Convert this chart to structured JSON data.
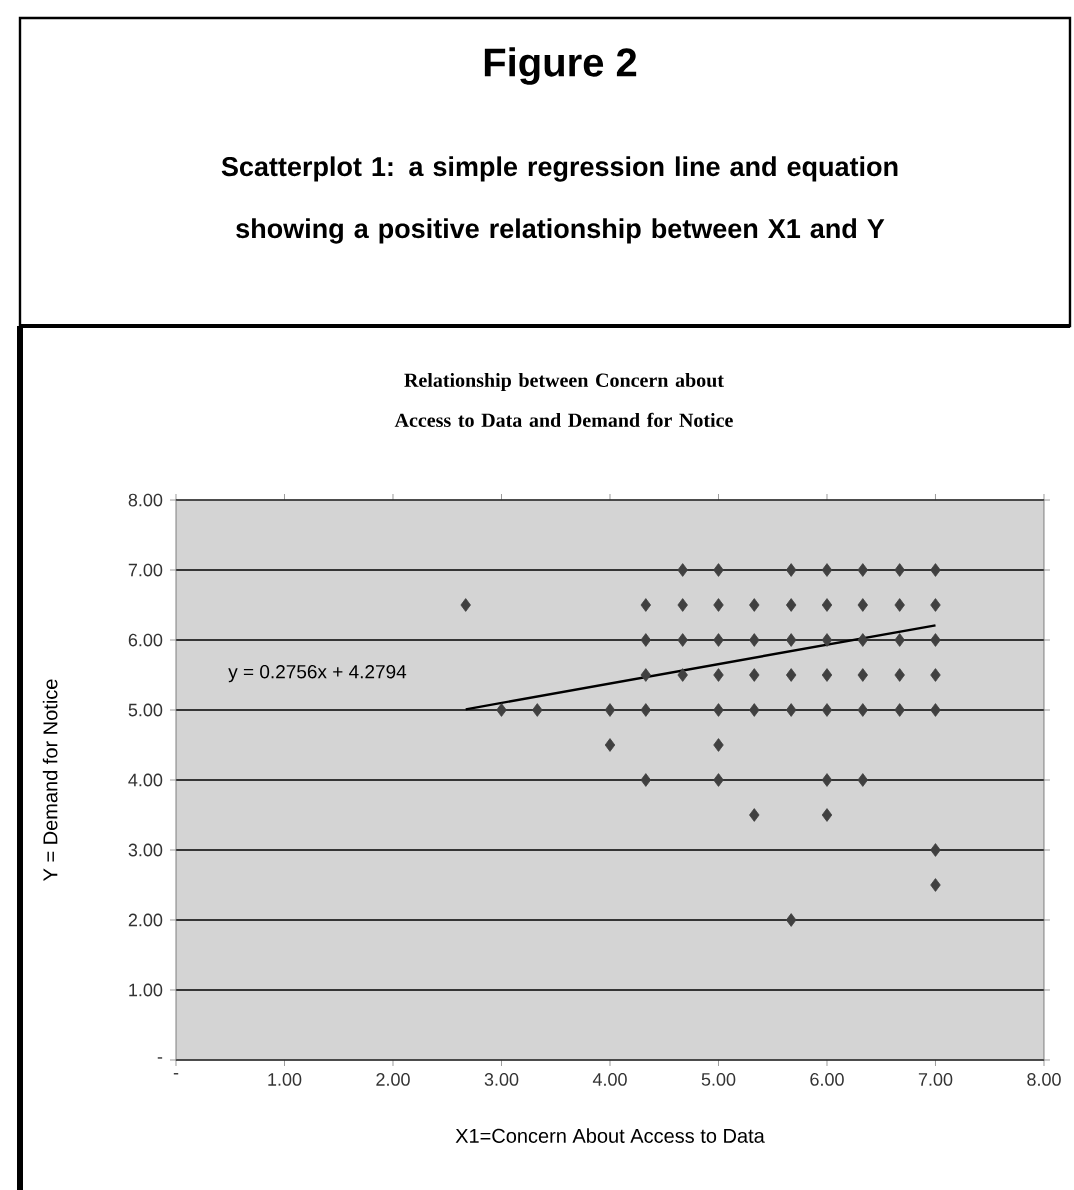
{
  "chart_data": {
    "type": "scatter",
    "title": "Relationship between Concern about Access to Data and Demand for Notice",
    "xlabel": "X1=Concern About Access to Data",
    "ylabel": "Y = Demand for Notice",
    "annotations": [
      "Figure 2",
      "Scatterplot 1: a simple regression line and equation showing a positive relationship between X1 and Y",
      "y = 0.2756x + 4.2794"
    ],
    "xlim": [
      0,
      8
    ],
    "ylim": [
      0,
      8
    ],
    "xticks": [
      {
        "value": 0,
        "label": "-"
      },
      {
        "value": 1,
        "label": "1.00"
      },
      {
        "value": 2,
        "label": "2.00"
      },
      {
        "value": 3,
        "label": "3.00"
      },
      {
        "value": 4,
        "label": "4.00"
      },
      {
        "value": 5,
        "label": "5.00"
      },
      {
        "value": 6,
        "label": "6.00"
      },
      {
        "value": 7,
        "label": "7.00"
      },
      {
        "value": 8,
        "label": "8.00"
      }
    ],
    "yticks": [
      {
        "value": 0,
        "label": "-"
      },
      {
        "value": 1,
        "label": "1.00"
      },
      {
        "value": 2,
        "label": "2.00"
      },
      {
        "value": 3,
        "label": "3.00"
      },
      {
        "value": 4,
        "label": "4.00"
      },
      {
        "value": 5,
        "label": "5.00"
      },
      {
        "value": 6,
        "label": "6.00"
      },
      {
        "value": 7,
        "label": "7.00"
      },
      {
        "value": 8,
        "label": "8.00"
      }
    ],
    "grid": "y",
    "marker": "diamond",
    "series": [
      {
        "color": "#404040",
        "x": [
          4.67,
          5,
          5.67,
          6,
          6.33,
          6.67,
          7,
          2.67,
          4.33,
          4.67,
          5,
          5.33,
          5.67,
          6,
          6.33,
          6.67,
          7,
          4.33,
          4.67,
          5,
          5.33,
          5.67,
          6,
          6.33,
          6.67,
          7,
          4.33,
          4.67,
          5,
          5.33,
          5.67,
          6,
          6.33,
          6.67,
          7,
          3,
          3.33,
          4,
          4.33,
          5,
          5.33,
          5.67,
          6,
          6.33,
          6.67,
          7,
          4,
          5,
          4.33,
          5,
          6,
          6.33,
          5.33,
          6,
          7,
          7,
          5.67
        ],
        "values": [
          7,
          7,
          7,
          7,
          7,
          7,
          7,
          6.5,
          6.5,
          6.5,
          6.5,
          6.5,
          6.5,
          6.5,
          6.5,
          6.5,
          6.5,
          6,
          6,
          6,
          6,
          6,
          6,
          6,
          6,
          6,
          5.5,
          5.5,
          5.5,
          5.5,
          5.5,
          5.5,
          5.5,
          5.5,
          5.5,
          5,
          5,
          5,
          5,
          5,
          5,
          5,
          5,
          5,
          5,
          5,
          4.5,
          4.5,
          4,
          4,
          4,
          4,
          3.5,
          3.5,
          3,
          2.5,
          2
        ]
      },
      {
        "type": "line",
        "marker": "none",
        "color": "#000000",
        "x": [
          2.67,
          7
        ],
        "values": [
          5.01,
          6.21
        ]
      }
    ]
  }
}
